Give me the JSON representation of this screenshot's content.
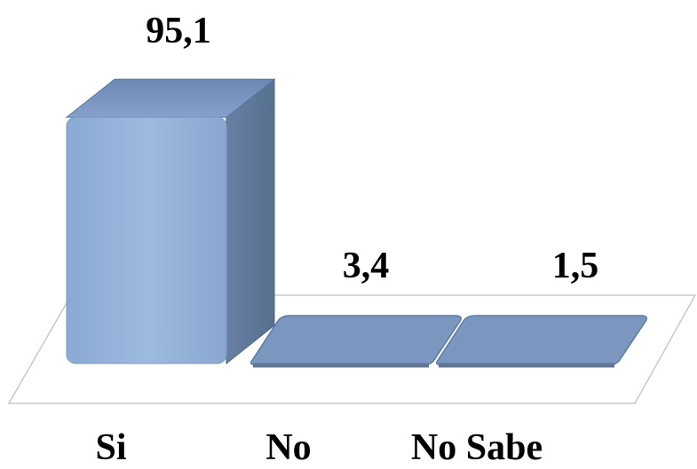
{
  "chart_data": {
    "type": "bar",
    "style": "3d-column",
    "categories": [
      "Si",
      "No",
      "No Sabe"
    ],
    "values": [
      95.1,
      3.4,
      1.5
    ],
    "value_labels": [
      "95,1",
      "3,4",
      "1,5"
    ],
    "title": "",
    "xlabel": "",
    "ylabel": "",
    "ylim": [
      0,
      100
    ],
    "grid": false,
    "legend": "none",
    "colors": {
      "bar_front": "#95b3d7",
      "bar_side": "#5f7898",
      "bar_top": "#7f9bc3",
      "floor_stroke": "#c8c8c8"
    }
  }
}
